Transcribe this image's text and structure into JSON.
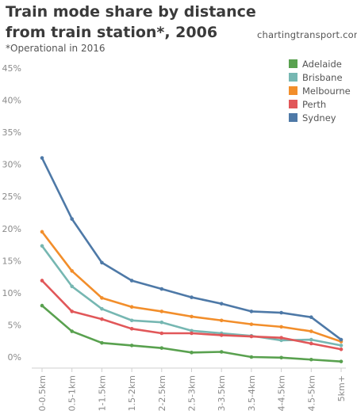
{
  "chart_data": {
    "type": "line",
    "title": "Train mode share by distance from train station*, 2006",
    "subtitle": "*Operational in 2016",
    "source": "chartingtransport.com",
    "categories": [
      "0-0.5km",
      "0.5-1km",
      "1-1.5km",
      "1.5-2km",
      "2-2.5km",
      "2.5-3km",
      "3-3.5km",
      "3.5-4km",
      "4-4.5km",
      "4.5-5km",
      "5km+"
    ],
    "y_ticks": [
      "0%",
      "5%",
      "10%",
      "15%",
      "20%",
      "25%",
      "30%",
      "35%",
      "40%",
      "45%"
    ],
    "ylim": [
      0,
      45
    ],
    "grid": false,
    "legend_position": "top-right",
    "series": [
      {
        "name": "Adelaide",
        "color": "#59a14f",
        "values": [
          8.0,
          4.0,
          2.2,
          1.8,
          1.4,
          0.7,
          0.8,
          0.0,
          -0.1,
          -0.4,
          -0.7
        ]
      },
      {
        "name": "Brisbane",
        "color": "#76b7b2",
        "values": [
          17.3,
          11.0,
          7.5,
          5.7,
          5.4,
          4.1,
          3.7,
          3.3,
          2.6,
          2.7,
          1.8
        ]
      },
      {
        "name": "Melbourne",
        "color": "#f28e2b",
        "values": [
          19.5,
          13.4,
          9.2,
          7.8,
          7.1,
          6.3,
          5.7,
          5.1,
          4.7,
          4.0,
          2.4
        ]
      },
      {
        "name": "Perth",
        "color": "#e15759",
        "values": [
          11.9,
          7.1,
          5.9,
          4.4,
          3.7,
          3.7,
          3.4,
          3.2,
          3.0,
          2.1,
          1.2
        ]
      },
      {
        "name": "Sydney",
        "color": "#4e79a7",
        "values": [
          31.0,
          21.5,
          14.7,
          11.9,
          10.6,
          9.3,
          8.3,
          7.1,
          6.9,
          6.2,
          2.7
        ]
      }
    ]
  }
}
